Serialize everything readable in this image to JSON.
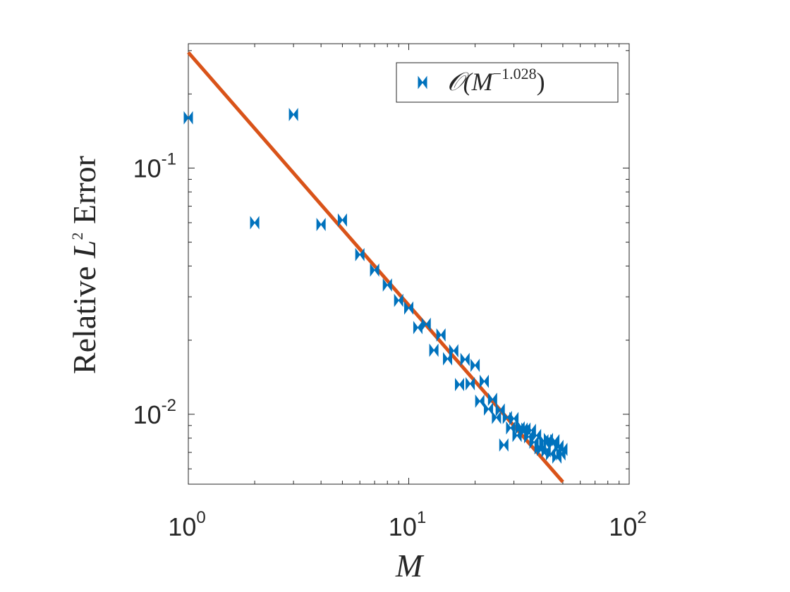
{
  "chart_data": {
    "type": "scatter",
    "x_scale": "log",
    "y_scale": "log",
    "xlim": [
      1,
      100
    ],
    "ylim": [
      0.0052,
      0.32
    ],
    "xlabel": "M",
    "ylabel": "Relative L² Error",
    "ylabel_parts": {
      "pre": "Relative ",
      "var": "L",
      "sup": "2",
      "post": " Error"
    },
    "x_ticks": [
      {
        "value": 1,
        "base": "10",
        "exp": "0"
      },
      {
        "value": 10,
        "base": "10",
        "exp": "1"
      },
      {
        "value": 100,
        "base": "10",
        "exp": "2"
      }
    ],
    "y_ticks": [
      {
        "value": 0.01,
        "base": "10",
        "exp": "-2"
      },
      {
        "value": 0.1,
        "base": "10",
        "exp": "-1"
      }
    ],
    "grid": false,
    "legend_position": "top-right",
    "colors": {
      "scatter": "#0072BD",
      "fit": "#D95319"
    },
    "series": [
      {
        "name": "O(M^-1.028)",
        "legend_parts": {
          "base": "𝒪(M",
          "sup": "−1.028",
          "close": ")"
        },
        "type": "scatter",
        "marker": "bowtie",
        "x": [
          1,
          2,
          3,
          4,
          5,
          6,
          7,
          8,
          9,
          10,
          11,
          12,
          13,
          14,
          15,
          16,
          17,
          18,
          19,
          20,
          21,
          22,
          23,
          24,
          25,
          26,
          27,
          28,
          29,
          30,
          31,
          32,
          33,
          34,
          35,
          36,
          37,
          38,
          39,
          40,
          41,
          42,
          43,
          44,
          45,
          46,
          47,
          48,
          49,
          50
        ],
        "y": [
          0.16,
          0.06,
          0.165,
          0.059,
          0.0615,
          0.0445,
          0.0385,
          0.0335,
          0.029,
          0.027,
          0.0225,
          0.0232,
          0.0182,
          0.021,
          0.0168,
          0.0181,
          0.0132,
          0.0167,
          0.0133,
          0.0158,
          0.0113,
          0.0136,
          0.0105,
          0.0115,
          0.0097,
          0.0104,
          0.0075,
          0.0097,
          0.0088,
          0.0096,
          0.0082,
          0.0088,
          0.0087,
          0.0087,
          0.0081,
          0.0086,
          0.0077,
          0.0082,
          0.0073,
          0.0072,
          0.0078,
          0.0071,
          0.0079,
          0.0069,
          0.0076,
          0.0078,
          0.0067,
          0.0074,
          0.0069,
          0.0072
        ]
      },
      {
        "name": "fit",
        "type": "line",
        "x": [
          1,
          50
        ],
        "y": [
          0.295,
          0.00531
        ]
      }
    ]
  }
}
